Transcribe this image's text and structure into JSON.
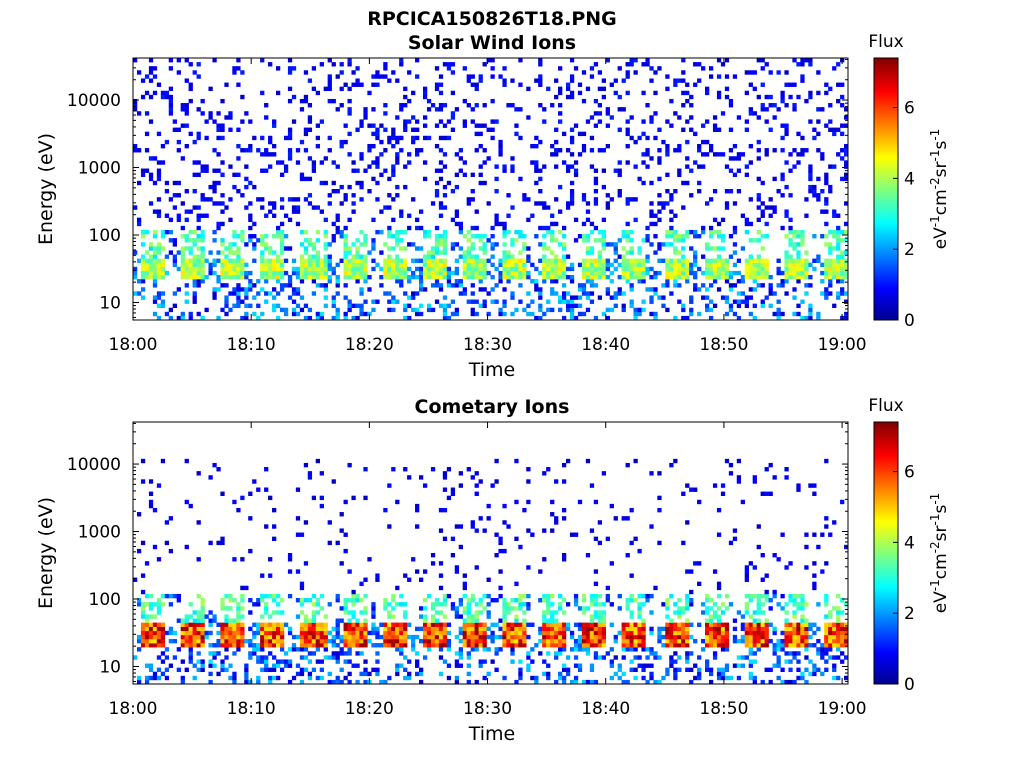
{
  "figure": {
    "filename": "RPCICA150826T18.PNG"
  },
  "colormap": {
    "name": "jet",
    "stops": [
      "#00008f",
      "#0000ff",
      "#00ffff",
      "#ffff00",
      "#ff0000",
      "#800000"
    ]
  },
  "chart_data": [
    {
      "type": "heatmap",
      "title": "Solar Wind Ions",
      "xlabel": "Time",
      "ylabel": "Energy (eV)",
      "x_ticks": [
        "18:00",
        "18:10",
        "18:20",
        "18:30",
        "18:40",
        "18:50",
        "19:00"
      ],
      "x_range_minutes": [
        0,
        60.5
      ],
      "y_ticks": [
        "10",
        "100",
        "1000",
        "10000"
      ],
      "y_scale": "log",
      "y_range_eV": [
        5.5,
        42000
      ],
      "colorbar": {
        "label": "Flux",
        "units": "eV-1cm-2sr-1s-1",
        "ticks": [
          "0",
          "2",
          "4",
          "6"
        ],
        "range": [
          0,
          7.4
        ]
      },
      "features": {
        "background_counts_eV": [
          60,
          40000
        ],
        "background_level": 0.8,
        "main_band_eV": [
          20,
          40
        ],
        "main_band_level": 4.2,
        "pulse_period_minutes": 3.4,
        "pulse_count": 18
      }
    },
    {
      "type": "heatmap",
      "title": "Cometary Ions",
      "xlabel": "Time",
      "ylabel": "Energy (eV)",
      "x_ticks": [
        "18:00",
        "18:10",
        "18:20",
        "18:30",
        "18:40",
        "18:50",
        "19:00"
      ],
      "x_range_minutes": [
        0,
        60.5
      ],
      "y_ticks": [
        "10",
        "100",
        "1000",
        "10000"
      ],
      "y_scale": "log",
      "y_range_eV": [
        5.5,
        42000
      ],
      "colorbar": {
        "label": "Flux",
        "units": "eV-1cm-2sr-1s-1",
        "ticks": [
          "0",
          "2",
          "4",
          "6"
        ],
        "range": [
          0,
          7.4
        ]
      },
      "features": {
        "background_counts_eV": [
          100,
          11000
        ],
        "background_level": 0.7,
        "main_band_eV": [
          18,
          40
        ],
        "main_band_level": 6.3,
        "pulse_period_minutes": 3.4,
        "pulse_count": 18
      }
    }
  ]
}
